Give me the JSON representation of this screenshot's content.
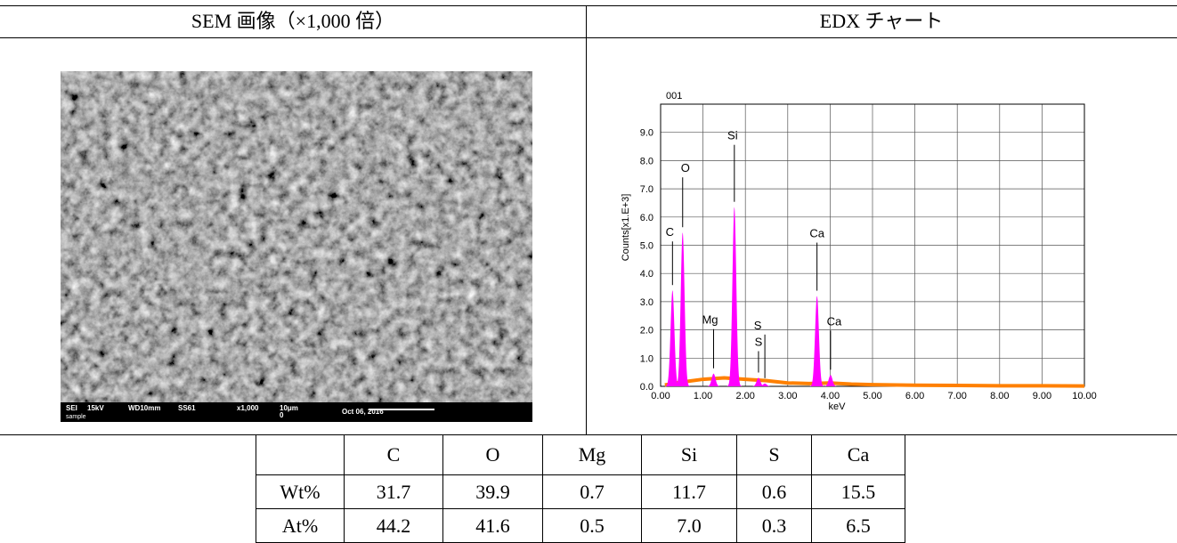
{
  "header": {
    "left": "SEM 画像（×1,000 倍）",
    "right": "EDX チャート"
  },
  "sem": {
    "info": [
      "SEI",
      "15kV",
      "WD10mm",
      "SS61",
      "x1,000",
      "10μm",
      "0",
      "Oct 06, 2016"
    ],
    "caption": "sample"
  },
  "chart_data": {
    "type": "spectrum",
    "title": "001",
    "y_label": "Counts[x1.E+3]",
    "x_label": "keV",
    "xlim": [
      0,
      10
    ],
    "ylim": [
      0,
      10
    ],
    "xticks": [
      {
        "value": 0,
        "label": "0.00"
      },
      {
        "value": 1,
        "label": "1.00"
      },
      {
        "value": 2,
        "label": "2.00"
      },
      {
        "value": 3,
        "label": "3.00"
      },
      {
        "value": 4,
        "label": "4.00"
      },
      {
        "value": 5,
        "label": "5.00"
      },
      {
        "value": 6,
        "label": "6.00"
      },
      {
        "value": 7,
        "label": "7.00"
      },
      {
        "value": 8,
        "label": "8.00"
      },
      {
        "value": 9,
        "label": "9.00"
      },
      {
        "value": 10,
        "label": "10.00"
      }
    ],
    "yticks": [
      {
        "value": 0,
        "label": "0.0"
      },
      {
        "value": 1,
        "label": "1.0"
      },
      {
        "value": 2,
        "label": "2.0"
      },
      {
        "value": 3,
        "label": "3.0"
      },
      {
        "value": 4,
        "label": "4.0"
      },
      {
        "value": 5,
        "label": "5.0"
      },
      {
        "value": 6,
        "label": "6.0"
      },
      {
        "value": 7,
        "label": "7.0"
      },
      {
        "value": 8,
        "label": "8.0"
      },
      {
        "value": 9,
        "label": "9.0"
      }
    ],
    "grid": true,
    "peaks": [
      {
        "label": "C",
        "x": 0.28,
        "y": 3.4
      },
      {
        "label": "O",
        "x": 0.52,
        "y": 5.45
      },
      {
        "label": "Mg",
        "x": 1.25,
        "y": 0.45
      },
      {
        "label": "Si",
        "x": 1.74,
        "y": 6.35
      },
      {
        "label": "S",
        "x": 2.31,
        "y": 0.3
      },
      {
        "label": "S",
        "x": 2.46,
        "y": 0.1
      },
      {
        "label": "Ca",
        "x": 3.69,
        "y": 3.2
      },
      {
        "label": "Ca",
        "x": 4.01,
        "y": 0.4
      }
    ],
    "peak_color": "#ff00ff",
    "background": {
      "color": "#ff8000",
      "x": [
        0.1,
        0.5,
        1,
        1.5,
        2,
        2.5,
        3,
        3.5,
        4,
        4.5,
        5,
        6,
        7,
        8,
        9,
        10
      ],
      "values": [
        0.05,
        0.15,
        0.25,
        0.3,
        0.25,
        0.2,
        0.12,
        0.1,
        0.12,
        0.08,
        0.06,
        0.04,
        0.03,
        0.02,
        0.02,
        0.01
      ]
    }
  },
  "table": {
    "rows": [
      [
        "",
        "C",
        "O",
        "Mg",
        "Si",
        "S",
        "Ca"
      ],
      [
        "Wt%",
        "31.7",
        "39.9",
        "0.7",
        "11.7",
        "0.6",
        "15.5"
      ],
      [
        "At%",
        "44.2",
        "41.6",
        "0.5",
        "7.0",
        "0.3",
        "6.5"
      ]
    ]
  }
}
